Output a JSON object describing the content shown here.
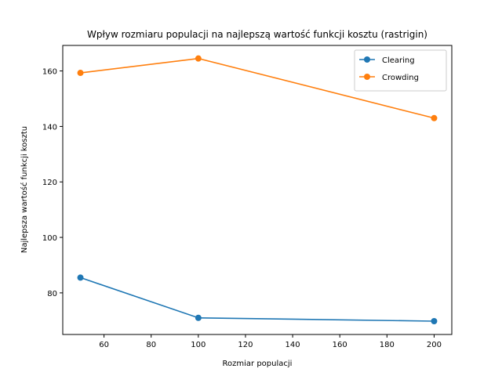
{
  "chart_data": {
    "type": "line",
    "title": "Wpływ rozmiaru populacji na najlepszą wartość funkcji kosztu (rastrigin)",
    "xlabel": "Rozmiar populacji",
    "ylabel": "Najlepsza wartość funkcji kosztu",
    "x": [
      50,
      100,
      200
    ],
    "series": [
      {
        "name": "Clearing",
        "color": "#1f77b4",
        "values": [
          85.5,
          71.0,
          69.8
        ]
      },
      {
        "name": "Crowding",
        "color": "#ff7f0e",
        "values": [
          159.3,
          164.5,
          143.0
        ]
      }
    ],
    "xlim": [
      42.5,
      207.5
    ],
    "ylim": [
      65.0,
      169.2
    ],
    "xticks": [
      60,
      80,
      100,
      120,
      140,
      160,
      180,
      200
    ],
    "yticks": [
      80,
      100,
      120,
      140,
      160
    ],
    "grid": false,
    "legend_position": "top-right"
  }
}
